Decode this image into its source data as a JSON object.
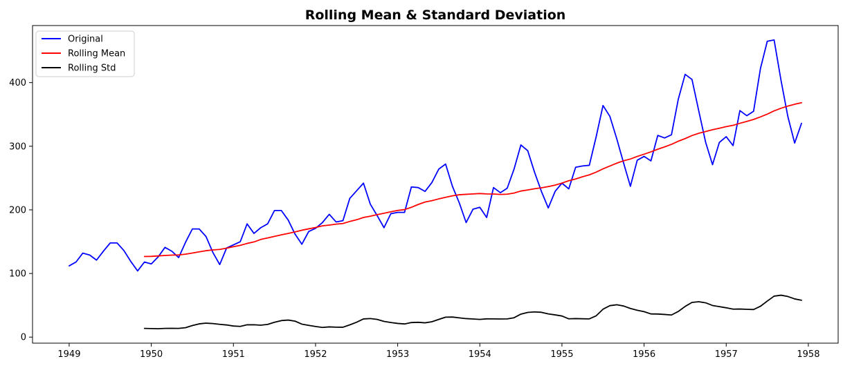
{
  "chart_data": {
    "type": "line",
    "title": "Rolling Mean & Standard Deviation",
    "xlabel": "",
    "ylabel": "",
    "grid": false,
    "legend_position": "upper left",
    "xlim": [
      1948.554,
      1958.363
    ],
    "ylim": [
      -9.5,
      489.7
    ],
    "xticks": [
      1949,
      1950,
      1951,
      1952,
      1953,
      1954,
      1955,
      1956,
      1957,
      1958
    ],
    "yticks": [
      0,
      100,
      200,
      300,
      400
    ],
    "x_unit": "year, monthly samples (index = start_month_index/12 offset from 1949)",
    "series": [
      {
        "name": "Original",
        "color": "#0000ff",
        "start_month_index": 0,
        "values": [
          112,
          118,
          132,
          129,
          121,
          135,
          148,
          148,
          136,
          119,
          104,
          118,
          115,
          126,
          141,
          135,
          125,
          149,
          170,
          170,
          158,
          133,
          114,
          140,
          145,
          150,
          178,
          163,
          172,
          178,
          199,
          199,
          184,
          162,
          146,
          166,
          171,
          180,
          193,
          181,
          183,
          218,
          230,
          242,
          209,
          191,
          172,
          194,
          196,
          196,
          236,
          235,
          229,
          243,
          264,
          272,
          237,
          211,
          180,
          201,
          204,
          188,
          235,
          227,
          234,
          264,
          302,
          293,
          259,
          229,
          203,
          229,
          242,
          233,
          267,
          269,
          270,
          315,
          364,
          347,
          312,
          274,
          237,
          278,
          284,
          277,
          317,
          313,
          318,
          374,
          413,
          405,
          355,
          306,
          271,
          306,
          315,
          301,
          356,
          348,
          355,
          422,
          465,
          467,
          404,
          347,
          305,
          336
        ]
      },
      {
        "name": "Rolling Mean",
        "color": "#ff0000",
        "start_month_index": 11,
        "values": [
          126.67,
          126.92,
          127.58,
          128.33,
          128.83,
          129.17,
          130.33,
          132.17,
          134,
          135.83,
          137,
          137.83,
          139.67,
          142.17,
          144.17,
          147.25,
          149.58,
          153.5,
          155.92,
          158.33,
          160.75,
          162.92,
          165.33,
          168,
          170.17,
          172.33,
          174.83,
          176.08,
          177.58,
          178.5,
          181.83,
          184.42,
          188,
          190.08,
          192.5,
          194.67,
          197,
          199.08,
          200.42,
          204,
          208.5,
          212.33,
          214.42,
          217.25,
          219.75,
          222.08,
          223.75,
          224.42,
          225,
          225.67,
          225,
          224.92,
          224.25,
          224.67,
          226.42,
          229.58,
          231.33,
          233.17,
          234.67,
          236.58,
          238.92,
          242.08,
          245.83,
          248.5,
          252,
          255,
          259.25,
          264.42,
          268.92,
          273.33,
          277.08,
          279.92,
          284,
          287.5,
          291.17,
          295.33,
          299,
          303,
          307.92,
          312,
          316.83,
          320.42,
          323.08,
          325.92,
          328.25,
          330.83,
          332.83,
          336.08,
          339,
          342.08,
          346.08,
          350.42,
          355.58,
          359.67,
          363.08,
          365.92,
          368.42
        ]
      },
      {
        "name": "Rolling Std",
        "color": "#000000",
        "start_month_index": 11,
        "values": [
          13.72,
          13.45,
          13.17,
          13.69,
          13.82,
          13.66,
          14.76,
          18.13,
          20.8,
          21.93,
          21.32,
          20.07,
          19.07,
          17.44,
          16.78,
          19.35,
          19.43,
          18.74,
          19.94,
          23.28,
          25.96,
          26.78,
          25.09,
          20.4,
          18.44,
          16.65,
          15.18,
          16.06,
          15.56,
          15.52,
          19.25,
          23.4,
          28.56,
          29.15,
          27.78,
          24.66,
          22.97,
          21.48,
          20.67,
          22.87,
          23.25,
          22.44,
          24.11,
          27.82,
          31.37,
          31.54,
          30.25,
          29.07,
          28.47,
          27.81,
          28.67,
          28.64,
          28.47,
          28.59,
          30.4,
          36.11,
          38.76,
          39.57,
          38.99,
          36.54,
          34.92,
          33.15,
          28.72,
          29.11,
          28.81,
          28.64,
          33.48,
          43.85,
          49.46,
          50.84,
          48.9,
          45.05,
          42.14,
          40.03,
          36.43,
          36.28,
          35.59,
          34.72,
          40.3,
          48.21,
          54.53,
          55.59,
          53.9,
          49.69,
          47.86,
          46.06,
          43.98,
          44.15,
          43.64,
          43.32,
          48.45,
          56.62,
          64.35,
          65.85,
          63.84,
          60.03,
          57.89
        ]
      }
    ],
    "legend": {
      "items": [
        {
          "label": "Original",
          "color": "#0000ff"
        },
        {
          "label": "Rolling Mean",
          "color": "#ff0000"
        },
        {
          "label": "Rolling Std",
          "color": "#000000"
        }
      ]
    },
    "colors": {
      "axes_edge": "#000000",
      "background": "#ffffff",
      "legend_border": "#cccccc",
      "legend_background": "#ffffff"
    }
  }
}
